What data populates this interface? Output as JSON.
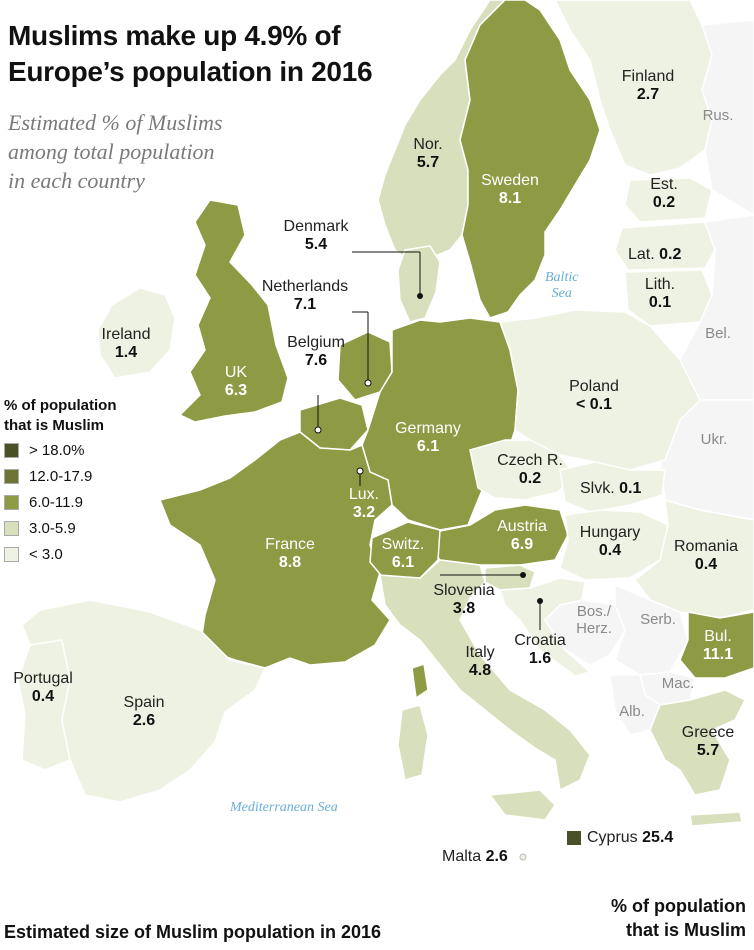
{
  "title_line1": "Muslims make up 4.9% of",
  "title_line2": "Europe’s population in 2016",
  "subtitle_line1": "Estimated % of Muslims",
  "subtitle_line2": "among total population",
  "subtitle_line3": "in each country",
  "legend": {
    "title_line1": "% of population",
    "title_line2": "that is Muslim",
    "items": [
      {
        "label": "> 18.0%",
        "color": "#4a5126"
      },
      {
        "label": "12.0-17.9",
        "color": "#6e7433"
      },
      {
        "label": "6.0-11.9",
        "color": "#8f9a44"
      },
      {
        "label": "3.0-5.9",
        "color": "#d7dfbd"
      },
      {
        "label": "< 3.0",
        "color": "#eef2e2"
      }
    ]
  },
  "seas": {
    "baltic_line1": "Baltic",
    "baltic_line2": "Sea",
    "mediterranean": "Mediterranean Sea"
  },
  "countries": {
    "finland": {
      "name": "Finland",
      "value": "2.7"
    },
    "russia": {
      "name": "Rus."
    },
    "norway": {
      "name": "Nor.",
      "value": "5.7"
    },
    "sweden": {
      "name": "Sweden",
      "value": "8.1"
    },
    "estonia": {
      "name": "Est.",
      "value": "0.2"
    },
    "latvia": {
      "name": "Lat.",
      "value": "0.2"
    },
    "lithuania": {
      "name": "Lith.",
      "value": "0.1"
    },
    "belarus": {
      "name": "Bel."
    },
    "denmark": {
      "name": "Denmark",
      "value": "5.4"
    },
    "netherlands": {
      "name": "Netherlands",
      "value": "7.1"
    },
    "belgium": {
      "name": "Belgium",
      "value": "7.6"
    },
    "ireland": {
      "name": "Ireland",
      "value": "1.4"
    },
    "uk": {
      "name": "UK",
      "value": "6.3"
    },
    "poland": {
      "name": "Poland",
      "value": "< 0.1"
    },
    "ukraine": {
      "name": "Ukr."
    },
    "germany": {
      "name": "Germany",
      "value": "6.1"
    },
    "czech": {
      "name": "Czech R.",
      "value": "0.2"
    },
    "slovakia": {
      "name": "Slvk.",
      "value": "0.1"
    },
    "luxembourg": {
      "name": "Lux.",
      "value": "3.2"
    },
    "austria": {
      "name": "Austria",
      "value": "6.9"
    },
    "hungary": {
      "name": "Hungary",
      "value": "0.4"
    },
    "romania": {
      "name": "Romania",
      "value": "0.4"
    },
    "france": {
      "name": "France",
      "value": "8.8"
    },
    "switzerland": {
      "name": "Switz.",
      "value": "6.1"
    },
    "slovenia": {
      "name": "Slovenia",
      "value": "3.8"
    },
    "bosnia_line1": {
      "name": "Bos./"
    },
    "bosnia_line2": {
      "name": "Herz."
    },
    "serbia": {
      "name": "Serb."
    },
    "croatia": {
      "name": "Croatia",
      "value": "1.6"
    },
    "bulgaria": {
      "name": "Bul.",
      "value": "11.1"
    },
    "portugal": {
      "name": "Portugal",
      "value": "0.4"
    },
    "spain": {
      "name": "Spain",
      "value": "2.6"
    },
    "italy": {
      "name": "Italy",
      "value": "4.8"
    },
    "macedonia": {
      "name": "Mac."
    },
    "albania": {
      "name": "Alb."
    },
    "greece": {
      "name": "Greece",
      "value": "5.7"
    },
    "malta": {
      "name": "Malta",
      "value": "2.6"
    },
    "cyprus": {
      "name": "Cyprus",
      "value": "25.4"
    }
  },
  "footer": {
    "left": "Estimated size of Muslim population in 2016",
    "right_line1": "% of population",
    "right_line2": "that is Muslim"
  }
}
